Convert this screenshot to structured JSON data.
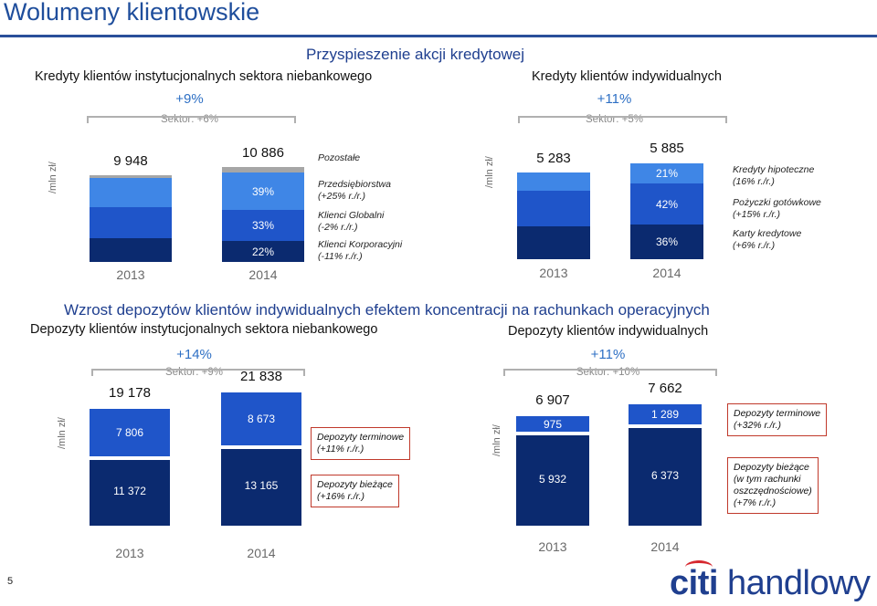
{
  "title": "Wolumeny klientowskie",
  "banner_top": "Przyspieszenie akcji kredytowej",
  "banner_mid": "Wzrost depozytów klientów indywidualnych efektem koncentracji na rachunkach operacyjnych",
  "unit": "/mln zł/",
  "page_number": "5",
  "logo": {
    "a": "citi",
    "b": " handlowy"
  },
  "colors": {
    "dark_navy": "#0b2a6f",
    "royal_blue": "#1f55c9",
    "mid_blue": "#3f86e6",
    "light_blue": "#62aef5",
    "grey": "#a6a6a6",
    "accent": "#2d6fc4",
    "box_border": "#c0392b"
  },
  "chart_data": [
    {
      "type": "bar",
      "stacked": true,
      "title": "Kredyty klientów instytucjonalnych sektora niebankowego",
      "growth": "+9%",
      "sector": "Sektor: +6%",
      "categories": [
        "2013",
        "2014"
      ],
      "totals": [
        "9 948",
        "10 886"
      ],
      "totals_num": [
        9948,
        10886
      ],
      "series": [
        {
          "name": "Klienci Korporacyjni (-11% r./r.)",
          "color": "#0b2a6f",
          "shares": [
            0.27,
            0.22
          ],
          "labels": [
            "",
            "22%"
          ]
        },
        {
          "name": "Klienci Globalni (-2% r./r.)",
          "color": "#1f55c9",
          "shares": [
            0.36,
            0.33
          ],
          "labels": [
            "",
            "33%"
          ]
        },
        {
          "name": "Przedsiębiorstwa (+25% r./r.)",
          "color": "#3f86e6",
          "shares": [
            0.34,
            0.39
          ],
          "labels": [
            "",
            "39%"
          ]
        },
        {
          "name": "Pozostałe",
          "color": "#a6a6a6",
          "shares": [
            0.03,
            0.06
          ],
          "labels": [
            "",
            ""
          ]
        }
      ],
      "legend": [
        {
          "text": "Pozostałe"
        },
        {
          "text": "Przedsiębiorstwa\n(+25% r./r.)"
        },
        {
          "text": "Klienci Globalni\n(-2% r./r.)"
        },
        {
          "text": "Klienci Korporacyjni\n(-11% r./r.)"
        }
      ]
    },
    {
      "type": "bar",
      "stacked": true,
      "title": "Kredyty klientów indywidualnych",
      "growth": "+11%",
      "sector": "Sektor: +5%",
      "categories": [
        "2013",
        "2014"
      ],
      "totals": [
        "5 283",
        "5 885"
      ],
      "totals_num": [
        5283,
        5885
      ],
      "series": [
        {
          "name": "Karty kredytowe (+6% r./r.)",
          "color": "#0b2a6f",
          "shares": [
            0.38,
            0.36
          ],
          "labels": [
            "",
            "36%"
          ]
        },
        {
          "name": "Pożyczki gotówkowe (+15% r./r.)",
          "color": "#1f55c9",
          "shares": [
            0.41,
            0.42
          ],
          "labels": [
            "",
            "42%"
          ]
        },
        {
          "name": "Kredyty hipoteczne (16% r./r.)",
          "color": "#3f86e6",
          "shares": [
            0.21,
            0.21
          ],
          "labels": [
            "",
            "21%"
          ]
        }
      ],
      "legend": [
        {
          "text": "Kredyty hipoteczne\n(16% r./r.)"
        },
        {
          "text": "Pożyczki gotówkowe\n(+15% r./r.)"
        },
        {
          "text": "Karty kredytowe\n(+6% r./r.)"
        }
      ]
    },
    {
      "type": "bar",
      "stacked": true,
      "title": "Depozyty klientów instytucjonalnych sektora niebankowego",
      "growth": "+14%",
      "sector": "Sektor: +9%",
      "categories": [
        "2013",
        "2014"
      ],
      "totals": [
        "19 178",
        "21 838"
      ],
      "totals_num": [
        19178,
        21838
      ],
      "series": [
        {
          "name": "Depozyty bieżące (+16% r./r.)",
          "color": "#0b2a6f",
          "values": [
            11372,
            13165
          ],
          "labels": [
            "11 372",
            "13 165"
          ]
        },
        {
          "name": "Depozyty terminowe (+11% r./r.)",
          "color": "#1f55c9",
          "values": [
            7806,
            8673
          ],
          "labels": [
            "7 806",
            "8 673"
          ]
        }
      ],
      "legend": [
        {
          "text": "Depozyty terminowe\n(+11% r./r.)"
        },
        {
          "text": "Depozyty bieżące\n(+16% r./r.)"
        }
      ]
    },
    {
      "type": "bar",
      "stacked": true,
      "title": "Depozyty klientów indywidualnych",
      "growth": "+11%",
      "sector": "Sektor: +10%",
      "categories": [
        "2013",
        "2014"
      ],
      "totals": [
        "6 907",
        "7 662"
      ],
      "totals_num": [
        6907,
        7662
      ],
      "series": [
        {
          "name": "Depozyty bieżące (w tym rachunki oszczędnościowe) (+7% r./r.)",
          "color": "#0b2a6f",
          "values": [
            5932,
            6373
          ],
          "labels": [
            "5 932",
            "6 373"
          ]
        },
        {
          "name": "Depozyty terminowe (+32% r./r.)",
          "color": "#1f55c9",
          "values": [
            975,
            1289
          ],
          "labels": [
            "975",
            "1 289"
          ]
        }
      ],
      "legend": [
        {
          "text": "Depozyty terminowe\n(+32% r./r.)"
        },
        {
          "text": "Depozyty bieżące\n(w tym rachunki\noszczędnościowe)\n(+7% r./r.)"
        }
      ]
    }
  ]
}
